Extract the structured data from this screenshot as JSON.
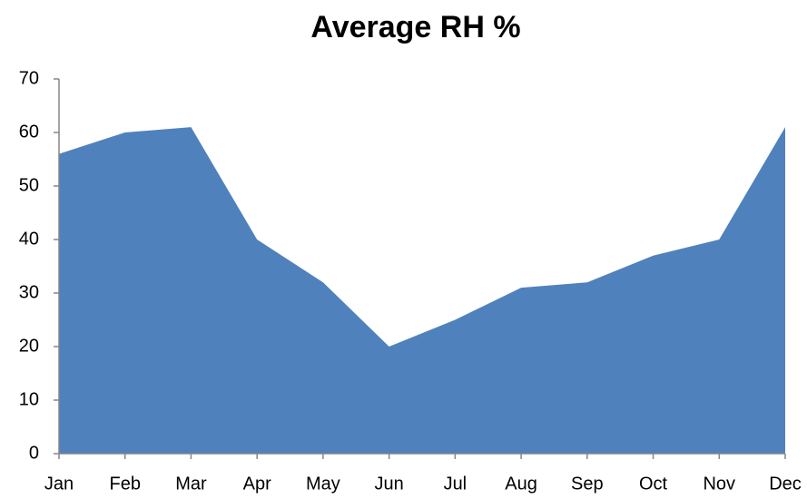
{
  "chart_data": {
    "type": "area",
    "title": "Average RH %",
    "categories": [
      "Jan",
      "Feb",
      "Mar",
      "Apr",
      "May",
      "Jun",
      "Jul",
      "Aug",
      "Sep",
      "Oct",
      "Nov",
      "Dec"
    ],
    "values": [
      56,
      60,
      61,
      40,
      32,
      20,
      25,
      31,
      32,
      37,
      40,
      61
    ],
    "color": "#4f81bd",
    "ylim": [
      0,
      70
    ],
    "yticks": [
      0,
      10,
      20,
      30,
      40,
      50,
      60,
      70
    ],
    "grid": false
  }
}
